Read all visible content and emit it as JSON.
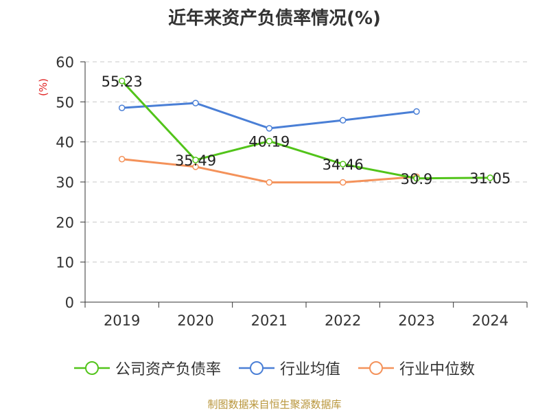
{
  "title": "近年来资产负债率情况(%)",
  "footer": "制图数据来自恒生聚源数据库",
  "chart_data": {
    "type": "line",
    "title": "近年来资产负债率情况(%)",
    "xlabel": "",
    "ylabel": "(%)",
    "categories": [
      "2019",
      "2020",
      "2021",
      "2022",
      "2023",
      "2024"
    ],
    "ylim": [
      0,
      60
    ],
    "yticks": [
      "0",
      "10",
      "20",
      "30",
      "40",
      "50",
      "60"
    ],
    "grid": true,
    "legend_position": "bottom",
    "series": [
      {
        "name": "公司资产负债率",
        "color": "#52c41a",
        "values": [
          55.23,
          35.49,
          40.19,
          34.46,
          30.9,
          31.05
        ],
        "labels": [
          "55.23",
          "35.49",
          "40.19",
          "34.46",
          "30.9",
          "31.05"
        ]
      },
      {
        "name": "行业均值",
        "color": "#4a7fd6",
        "values": [
          48.5,
          49.7,
          43.4,
          45.4,
          47.6,
          null
        ]
      },
      {
        "name": "行业中位数",
        "color": "#f4925a",
        "values": [
          35.7,
          33.8,
          29.9,
          29.9,
          31.3,
          null
        ]
      }
    ]
  }
}
